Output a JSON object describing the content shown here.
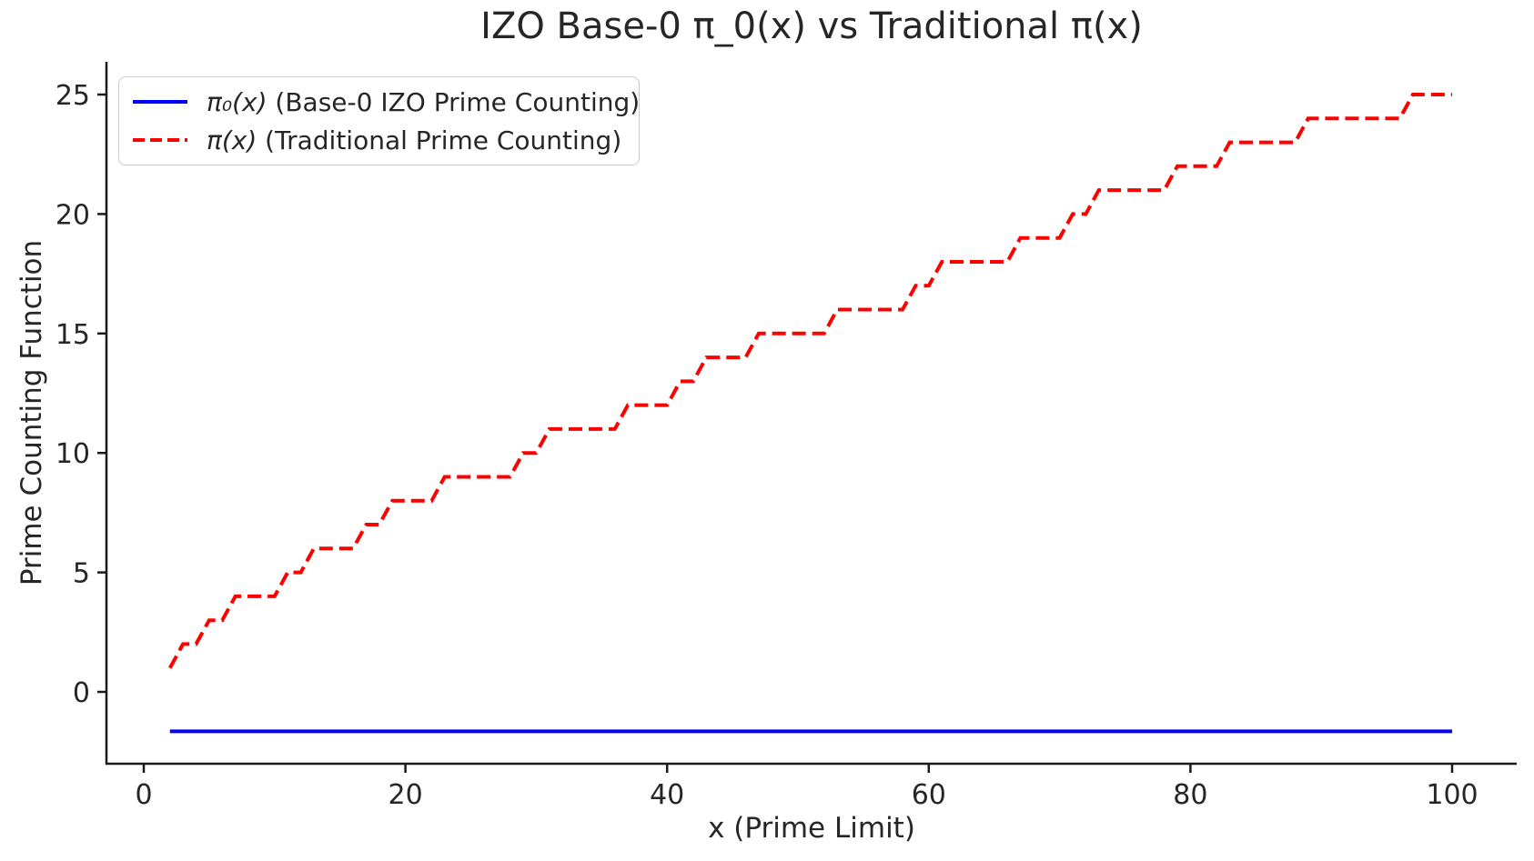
{
  "title": "IZO Base-0 π_0(x) vs Traditional π(x)",
  "axes": {
    "xlabel": "x (Prime Limit)",
    "ylabel": "Prime Counting Function"
  },
  "legend": {
    "position": "upper left",
    "items": [
      {
        "math": "π₀(x)",
        "text": " (Base-0 IZO Prime Counting)",
        "color": "#0000ff",
        "style": "solid"
      },
      {
        "math": "π(x)",
        "text": " (Traditional Prime Counting)",
        "color": "#ff0000",
        "style": "dashed"
      }
    ]
  },
  "chart_data": {
    "type": "line",
    "title": "IZO Base-0 π_0(x) vs Traditional π(x)",
    "xlabel": "x (Prime Limit)",
    "ylabel": "Prime Counting Function",
    "x_ticks": [
      0,
      20,
      40,
      60,
      80,
      100
    ],
    "y_ticks": [
      0,
      5,
      10,
      15,
      20,
      25
    ],
    "xlim": [
      -2.9,
      104.9
    ],
    "ylim": [
      -3.05,
      26.35
    ],
    "x_sample_range": [
      2,
      100
    ],
    "grid": false,
    "legend_position": "upper left",
    "series": [
      {
        "name": "π₀(x) (Base-0 IZO Prime Counting)",
        "color": "#0000ff",
        "line_style": "solid",
        "line_width": 4,
        "shape": "constant",
        "constant_value": -1.65,
        "x_start": 2,
        "x_end": 100
      },
      {
        "name": "π(x) (Traditional Prime Counting)",
        "color": "#ff0000",
        "line_style": "dashed",
        "line_width": 4,
        "shape": "prime-counting-step",
        "primes_up_to_100": [
          2,
          3,
          5,
          7,
          11,
          13,
          17,
          19,
          23,
          29,
          31,
          37,
          41,
          43,
          47,
          53,
          59,
          61,
          67,
          71,
          73,
          79,
          83,
          89,
          97
        ],
        "steps": [
          [
            2,
            1
          ],
          [
            3,
            2
          ],
          [
            5,
            3
          ],
          [
            7,
            4
          ],
          [
            11,
            5
          ],
          [
            13,
            6
          ],
          [
            17,
            7
          ],
          [
            19,
            8
          ],
          [
            23,
            9
          ],
          [
            29,
            10
          ],
          [
            31,
            11
          ],
          [
            37,
            12
          ],
          [
            41,
            13
          ],
          [
            43,
            14
          ],
          [
            47,
            15
          ],
          [
            53,
            16
          ],
          [
            59,
            17
          ],
          [
            61,
            18
          ],
          [
            67,
            19
          ],
          [
            71,
            20
          ],
          [
            73,
            21
          ],
          [
            79,
            22
          ],
          [
            83,
            23
          ],
          [
            89,
            24
          ],
          [
            97,
            25
          ]
        ],
        "final_value": 25
      }
    ]
  }
}
